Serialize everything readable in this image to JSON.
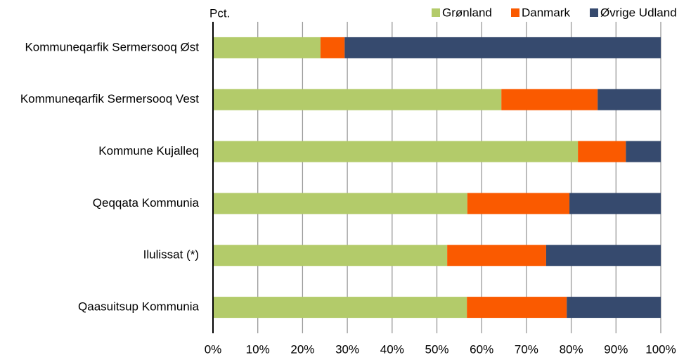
{
  "chart_data": {
    "type": "stacked_barh",
    "y_axis_label": "Pct.",
    "categories": [
      "Kommuneqarfik Sermersooq Øst",
      "Kommuneqarfik Sermersooq Vest",
      "Kommune Kujalleq",
      "Qeqqata Kommunia",
      "Ilulissat (*)",
      "Qaasuitsup Kommunia"
    ],
    "series": [
      {
        "name": "Grønland",
        "color": "#b3cb6a",
        "values": [
          24,
          64.4,
          81.5,
          56.8,
          52.3,
          56.7
        ]
      },
      {
        "name": "Danmark",
        "color": "#fa5a00",
        "values": [
          5.4,
          21.5,
          10.7,
          22.8,
          22.1,
          22.3
        ]
      },
      {
        "name": "Øvrige Udland",
        "color": "#364a6e",
        "values": [
          70.6,
          14.1,
          7.8,
          20.4,
          25.6,
          21
        ]
      }
    ],
    "xlim": [
      0,
      100
    ],
    "xticks": [
      {
        "value": 0,
        "label": "0%"
      },
      {
        "value": 10,
        "label": "10%"
      },
      {
        "value": 20,
        "label": "20%"
      },
      {
        "value": 30,
        "label": "30%"
      },
      {
        "value": 40,
        "label": "40%"
      },
      {
        "value": 50,
        "label": "50%"
      },
      {
        "value": 60,
        "label": "60%"
      },
      {
        "value": 70,
        "label": "70%"
      },
      {
        "value": 80,
        "label": "80%"
      },
      {
        "value": 90,
        "label": "90%"
      },
      {
        "value": 100,
        "label": "100%"
      }
    ],
    "grid": true,
    "legend": "top-right"
  }
}
